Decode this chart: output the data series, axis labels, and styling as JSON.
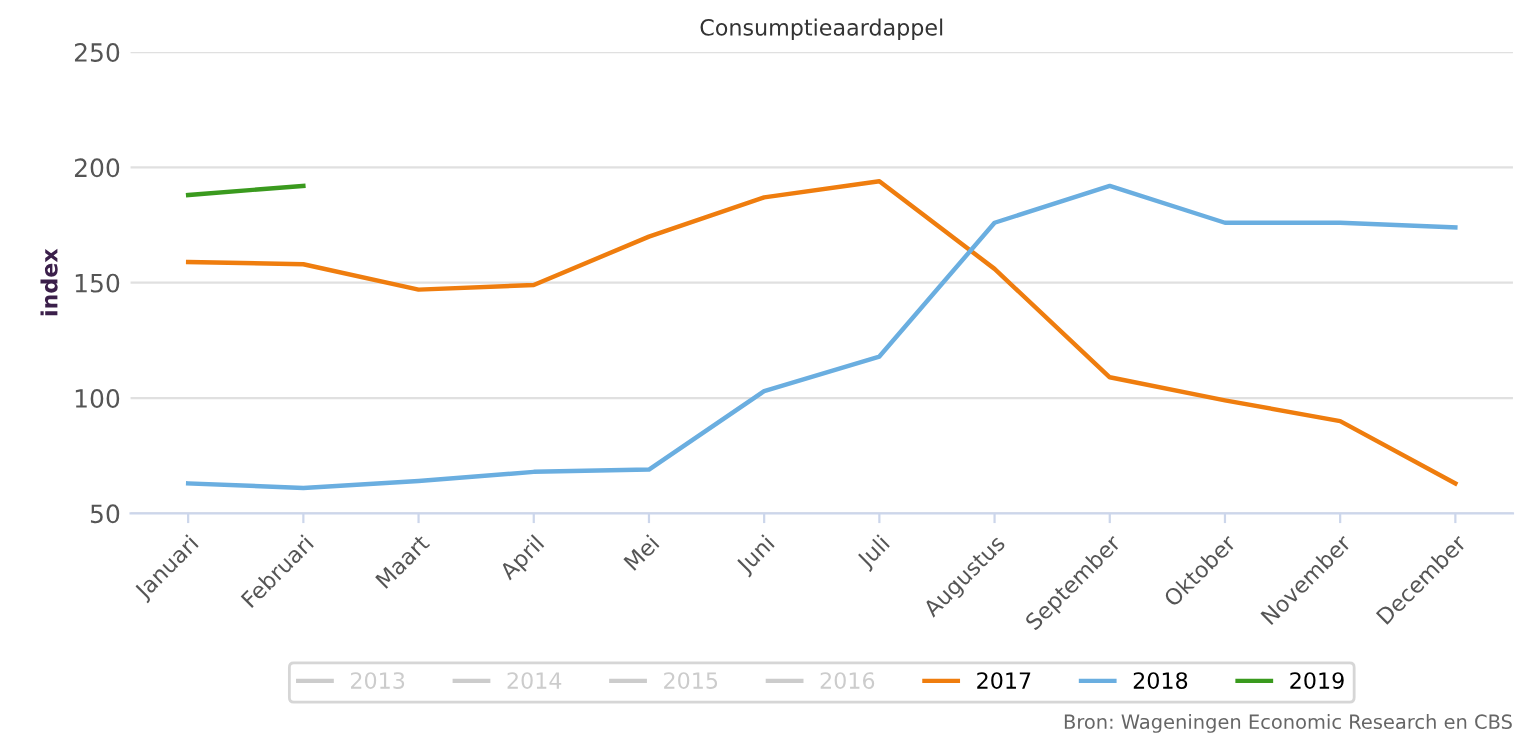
{
  "chart_data": {
    "type": "line",
    "title": "Consumptieaardappel",
    "ylabel": "index",
    "categories": [
      "Januari",
      "Februari",
      "Maart",
      "April",
      "Mei",
      "Juni",
      "Juli",
      "Augustus",
      "September",
      "Oktober",
      "November",
      "December"
    ],
    "series": [
      {
        "name": "2013",
        "color": "#cccccc",
        "values": [
          null,
          null,
          null,
          null,
          null,
          null,
          null,
          null,
          null,
          null,
          null,
          null
        ]
      },
      {
        "name": "2014",
        "color": "#cccccc",
        "values": [
          null,
          null,
          null,
          null,
          null,
          null,
          null,
          null,
          null,
          null,
          null,
          null
        ]
      },
      {
        "name": "2015",
        "color": "#cccccc",
        "values": [
          null,
          null,
          null,
          null,
          null,
          null,
          null,
          null,
          null,
          null,
          null,
          null
        ]
      },
      {
        "name": "2016",
        "color": "#cccccc",
        "values": [
          null,
          null,
          null,
          null,
          null,
          null,
          null,
          null,
          null,
          null,
          null,
          null
        ]
      },
      {
        "name": "2017",
        "color": "#ef7d0e",
        "values": [
          159,
          158,
          147,
          149,
          170,
          187,
          194,
          156,
          109,
          99,
          90,
          63
        ]
      },
      {
        "name": "2018",
        "color": "#6aaee0",
        "values": [
          63,
          61,
          64,
          68,
          69,
          103,
          118,
          176,
          192,
          176,
          176,
          174
        ]
      },
      {
        "name": "2019",
        "color": "#3a9a1e",
        "values": [
          188,
          192,
          null,
          null,
          null,
          null,
          null,
          null,
          null,
          null,
          null,
          null
        ]
      }
    ],
    "ylim": [
      50,
      250
    ],
    "yticks": [
      50,
      100,
      150,
      200,
      250
    ],
    "grid": "y",
    "legend": "bottom",
    "marker": "none",
    "line_style": "solid",
    "annotations": [
      "Bron: Wageningen Economic Research en CBS"
    ]
  }
}
